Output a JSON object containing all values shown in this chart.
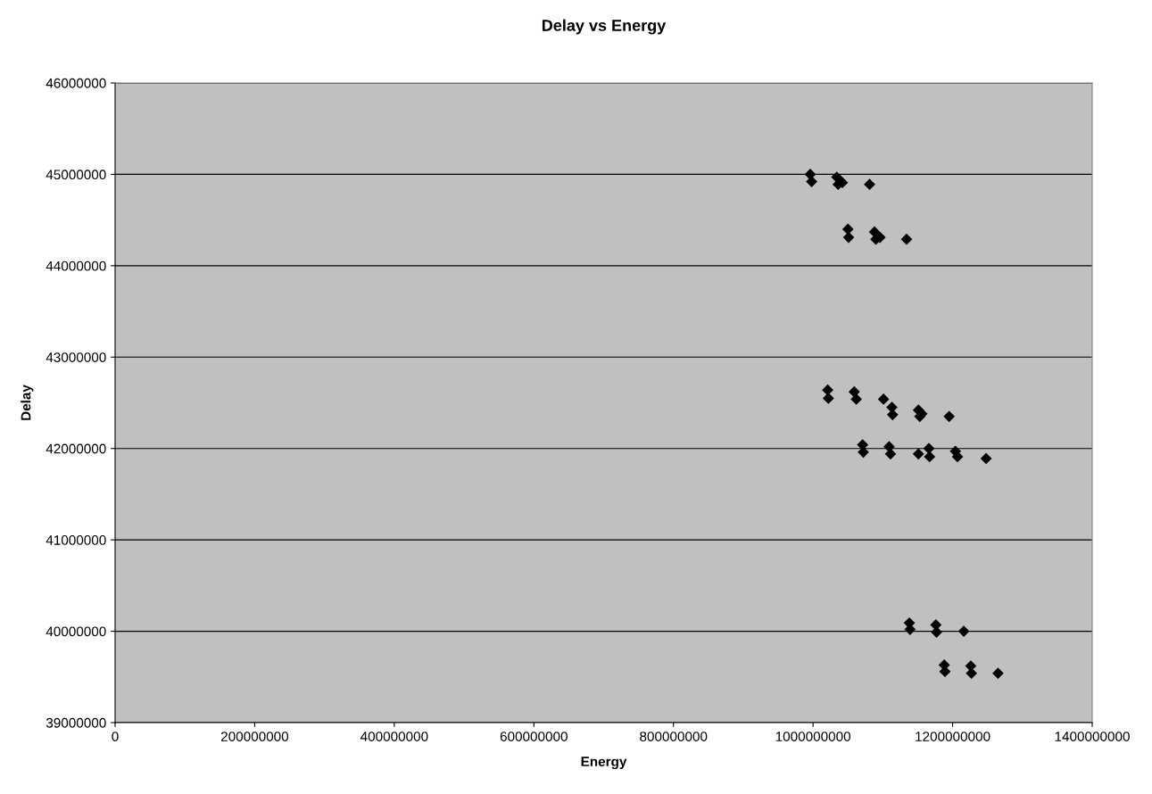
{
  "chart_data": {
    "type": "scatter",
    "title": "Delay vs Energy",
    "xlabel": "Energy",
    "ylabel": "Delay",
    "x": [
      996000000,
      998000000,
      1034000000,
      1036000000,
      1042000000,
      1081000000,
      1050000000,
      1051000000,
      1088000000,
      1090000000,
      1096000000,
      1134000000,
      1021000000,
      1022000000,
      1059000000,
      1062000000,
      1101000000,
      1113000000,
      1114000000,
      1151000000,
      1153000000,
      1156000000,
      1195000000,
      1071000000,
      1072000000,
      1109000000,
      1111000000,
      1151000000,
      1166000000,
      1167000000,
      1204000000,
      1207000000,
      1248000000,
      1138000000,
      1139000000,
      1176000000,
      1177000000,
      1216000000,
      1188000000,
      1189000000,
      1226000000,
      1227000000,
      1265000000
    ],
    "values": [
      45000000,
      44920000,
      44970000,
      44890000,
      44910000,
      44890000,
      44400000,
      44310000,
      44370000,
      44290000,
      44310000,
      44290000,
      42640000,
      42550000,
      42620000,
      42540000,
      42540000,
      42450000,
      42370000,
      42420000,
      42350000,
      42380000,
      42350000,
      42040000,
      41960000,
      42020000,
      41940000,
      41940000,
      42000000,
      41910000,
      41970000,
      41910000,
      41890000,
      40090000,
      40020000,
      40070000,
      39990000,
      40000000,
      39630000,
      39560000,
      39620000,
      39540000,
      39540000
    ],
    "color": "#000000",
    "marker": "diamond",
    "xlim": [
      0,
      1400000000
    ],
    "xticks": [
      0,
      200000000,
      400000000,
      600000000,
      800000000,
      1000000000,
      1200000000,
      1400000000
    ],
    "ylim": [
      39000000,
      46000000
    ],
    "yticks": [
      39000000,
      40000000,
      41000000,
      42000000,
      43000000,
      44000000,
      45000000,
      46000000
    ],
    "grid": "y"
  }
}
